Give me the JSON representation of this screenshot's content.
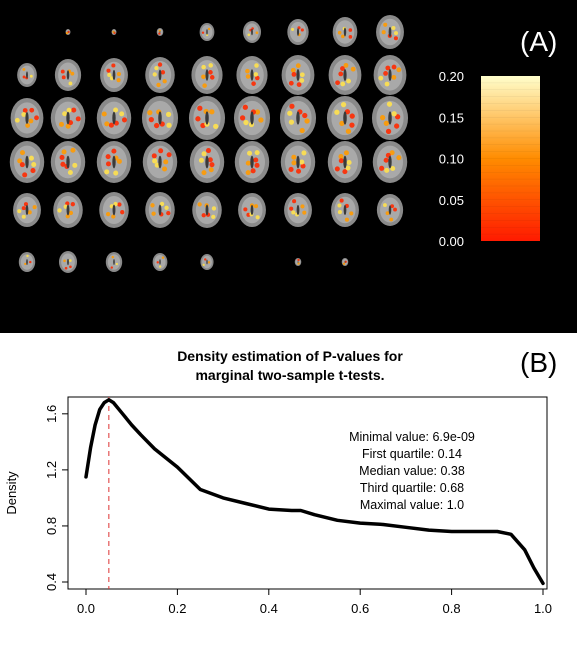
{
  "panel_a": {
    "label": "(A)",
    "colorbar": {
      "ticks": [
        "0.20",
        "0.15",
        "0.10",
        "0.05",
        "0.00"
      ],
      "colors": {
        "low": "#ff1a00",
        "mid": "#ff8c00",
        "high": "#ffffcc"
      }
    }
  },
  "panel_b": {
    "label": "(B)",
    "title_line1": "Density estimation of P-values  for",
    "title_line2": "marginal two-sample t-tests.",
    "stats": [
      "Minimal value: 6.9e-09",
      "First quartile: 0.14",
      "Median value: 0.38",
      "Third quartile: 0.68",
      "Maximal value: 1.0"
    ]
  },
  "chart_data": {
    "type": "line",
    "title": "Density estimation of P-values  for marginal two-sample t-tests.",
    "xlabel": "",
    "ylabel": "Density",
    "xlim": [
      0.0,
      1.0
    ],
    "ylim": [
      0.4,
      1.7
    ],
    "x_ticks": [
      "0.0",
      "0.2",
      "0.4",
      "0.6",
      "0.8",
      "1.0"
    ],
    "y_ticks": [
      "0.4",
      "0.8",
      "1.2",
      "1.6"
    ],
    "reference_line": {
      "x": 0.05,
      "color": "#dd3333",
      "style": "dashed"
    },
    "series": [
      {
        "x": [
          0.0,
          0.01,
          0.02,
          0.03,
          0.04,
          0.05,
          0.06,
          0.08,
          0.1,
          0.12,
          0.15,
          0.2,
          0.25,
          0.3,
          0.35,
          0.4,
          0.45,
          0.47,
          0.5,
          0.55,
          0.6,
          0.65,
          0.7,
          0.75,
          0.8,
          0.85,
          0.9,
          0.93,
          0.96,
          0.98,
          1.0
        ],
        "y": [
          1.15,
          1.36,
          1.52,
          1.63,
          1.68,
          1.7,
          1.68,
          1.6,
          1.52,
          1.45,
          1.35,
          1.22,
          1.06,
          1.0,
          0.96,
          0.92,
          0.91,
          0.91,
          0.88,
          0.84,
          0.82,
          0.81,
          0.79,
          0.77,
          0.76,
          0.76,
          0.76,
          0.74,
          0.63,
          0.5,
          0.39
        ]
      }
    ],
    "grid": false,
    "line_color": "#000000"
  }
}
